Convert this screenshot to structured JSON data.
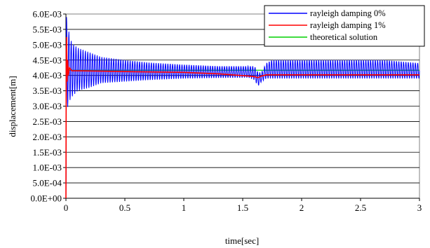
{
  "chart_data": {
    "type": "line",
    "title": "",
    "xlabel": "time[sec]",
    "ylabel": "displacement[m]",
    "xlim": [
      0,
      3
    ],
    "ylim": [
      0,
      0.006
    ],
    "x_ticks": [
      0,
      0.5,
      1,
      1.5,
      2,
      2.5,
      3
    ],
    "x_tick_labels": [
      "0",
      "0.5",
      "1",
      "1.5",
      "2",
      "2.5",
      "3"
    ],
    "y_ticks": [
      0,
      0.0005,
      0.001,
      0.0015,
      0.002,
      0.0025,
      0.003,
      0.0035,
      0.004,
      0.0045,
      0.005,
      0.0055,
      0.006
    ],
    "y_tick_labels": [
      "0.0E+00",
      "5.0E-04",
      "1.0E-03",
      "1.5E-03",
      "2.0E-03",
      "2.5E-03",
      "3.0E-03",
      "3.5E-03",
      "4.0E-03",
      "4.5E-03",
      "5.0E-03",
      "5.5E-03",
      "6.0E-03"
    ],
    "grid": "horizontal",
    "legend_position": "top-right",
    "series": [
      {
        "name": "rayleigh damping 0%",
        "color": "#0000ff",
        "x": [
          0,
          0.005,
          0.012,
          0.02,
          0.05,
          0.1,
          0.2,
          0.3,
          0.5,
          0.7,
          1.0,
          1.3,
          1.55,
          1.6,
          1.63,
          1.66,
          1.7,
          1.75,
          1.9,
          2.1,
          2.4,
          2.7,
          3.0
        ],
        "y_upper": [
          0,
          0.0059,
          0.006,
          0.0055,
          0.00505,
          0.0049,
          0.00475,
          0.0046,
          0.0045,
          0.00442,
          0.00435,
          0.0043,
          0.0043,
          0.0043,
          0.0041,
          0.0041,
          0.0044,
          0.0045,
          0.0045,
          0.0045,
          0.0045,
          0.0045,
          0.0044
        ],
        "y_lower": [
          0,
          0.0028,
          0.0029,
          0.0031,
          0.0033,
          0.0035,
          0.0036,
          0.00375,
          0.0038,
          0.00385,
          0.0039,
          0.00392,
          0.00393,
          0.00385,
          0.00365,
          0.0038,
          0.0039,
          0.0039,
          0.0039,
          0.0039,
          0.0039,
          0.0039,
          0.0039
        ],
        "frequency_hz": 50
      },
      {
        "name": "rayleigh damping 1%",
        "color": "#ff0000",
        "x": [
          0,
          0.003,
          0.006,
          0.01,
          0.015,
          0.02,
          0.03,
          0.05,
          0.1,
          0.3,
          0.6,
          1.0,
          1.3,
          1.55,
          1.6,
          1.63,
          1.66,
          1.7,
          2.0,
          2.5,
          3.0
        ],
        "y": [
          0,
          0.0048,
          0.00525,
          0.0038,
          0.0045,
          0.004,
          0.00425,
          0.00415,
          0.00415,
          0.00414,
          0.00412,
          0.0041,
          0.00405,
          0.00398,
          0.00396,
          0.00393,
          0.00398,
          0.00402,
          0.00402,
          0.00402,
          0.00402
        ]
      },
      {
        "name": "theoretical solution",
        "color": "#00d000",
        "x": [
          0,
          3
        ],
        "y": [
          0.00417,
          0.00417
        ]
      }
    ]
  }
}
